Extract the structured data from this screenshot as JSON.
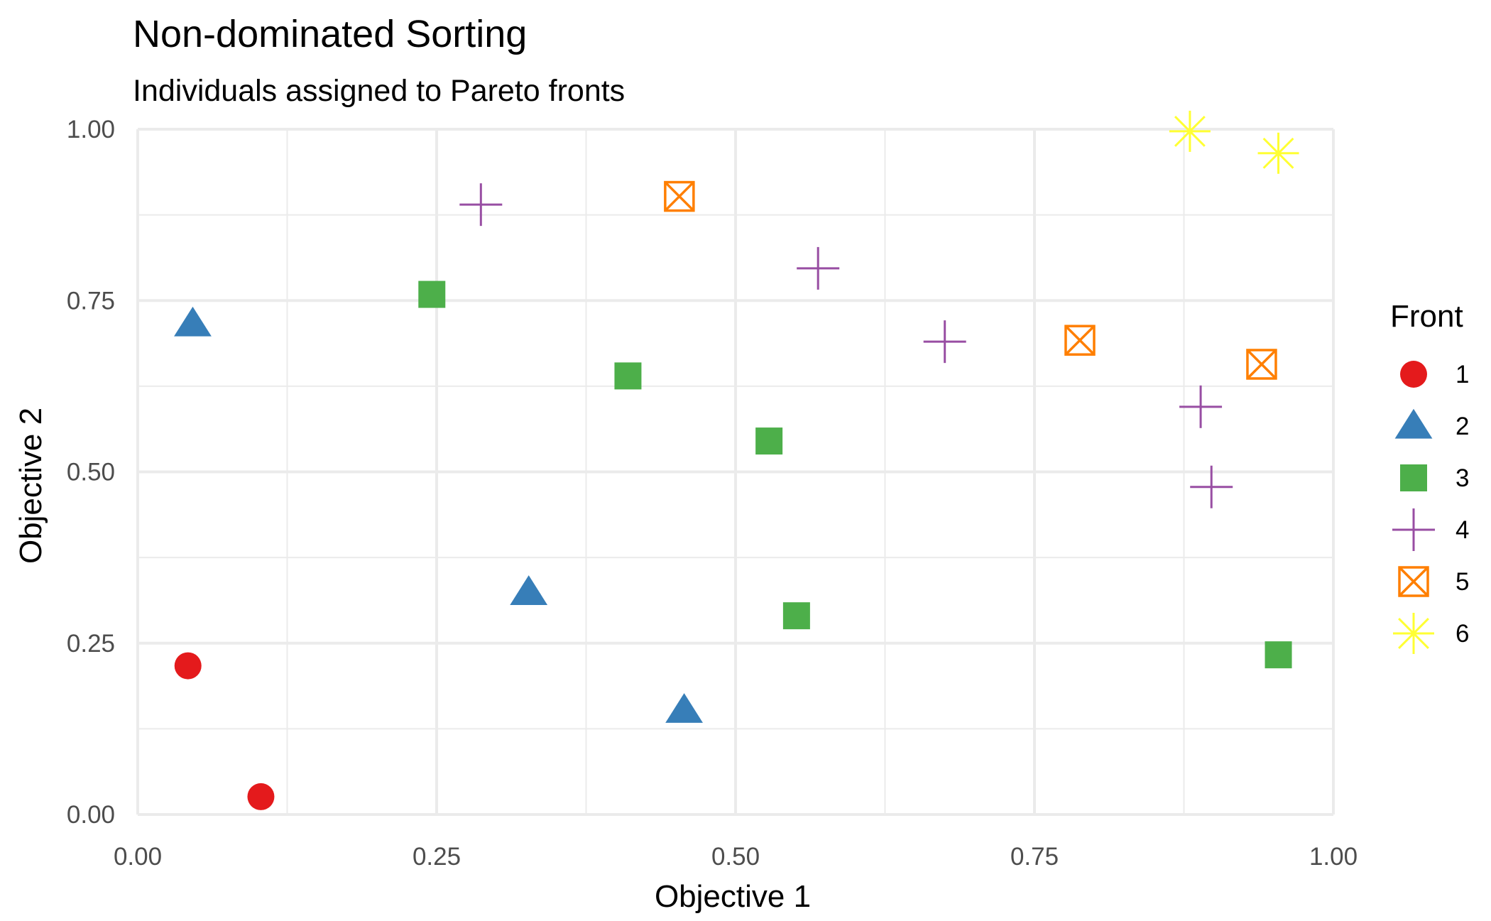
{
  "chart_data": {
    "type": "scatter",
    "title": "Non-dominated Sorting",
    "subtitle": "Individuals assigned to Pareto fronts",
    "xlabel": "Objective 1",
    "ylabel": "Objective 2",
    "xlim": [
      0,
      1
    ],
    "ylim": [
      0,
      1
    ],
    "x_ticks": [
      "0.00",
      "0.25",
      "0.50",
      "0.75",
      "1.00"
    ],
    "y_ticks": [
      "0.00",
      "0.25",
      "0.50",
      "0.75",
      "1.00"
    ],
    "grid": true,
    "legend": {
      "title": "Front",
      "placement": "right"
    },
    "series": [
      {
        "name": "1",
        "color": "#E41A1C",
        "shape": "circle",
        "points": [
          [
            0.042,
            0.217
          ],
          [
            0.103,
            0.026
          ]
        ]
      },
      {
        "name": "2",
        "color": "#377EB8",
        "shape": "triangle",
        "points": [
          [
            0.046,
            0.716
          ],
          [
            0.327,
            0.324
          ],
          [
            0.457,
            0.152
          ]
        ]
      },
      {
        "name": "3",
        "color": "#4DAF4A",
        "shape": "square",
        "points": [
          [
            0.246,
            0.759
          ],
          [
            0.41,
            0.64
          ],
          [
            0.528,
            0.545
          ],
          [
            0.551,
            0.29
          ],
          [
            0.954,
            0.233
          ]
        ]
      },
      {
        "name": "4",
        "color": "#984EA3",
        "shape": "plus",
        "points": [
          [
            0.287,
            0.89
          ],
          [
            0.569,
            0.797
          ],
          [
            0.675,
            0.69
          ],
          [
            0.889,
            0.595
          ],
          [
            0.898,
            0.478
          ]
        ]
      },
      {
        "name": "5",
        "color": "#FF7F00",
        "shape": "square-x",
        "points": [
          [
            0.453,
            0.902
          ],
          [
            0.788,
            0.692
          ],
          [
            0.94,
            0.657
          ]
        ]
      },
      {
        "name": "6",
        "color": "#FFFF33",
        "shape": "asterisk",
        "points": [
          [
            0.88,
            0.997
          ],
          [
            0.954,
            0.965
          ]
        ]
      }
    ]
  }
}
